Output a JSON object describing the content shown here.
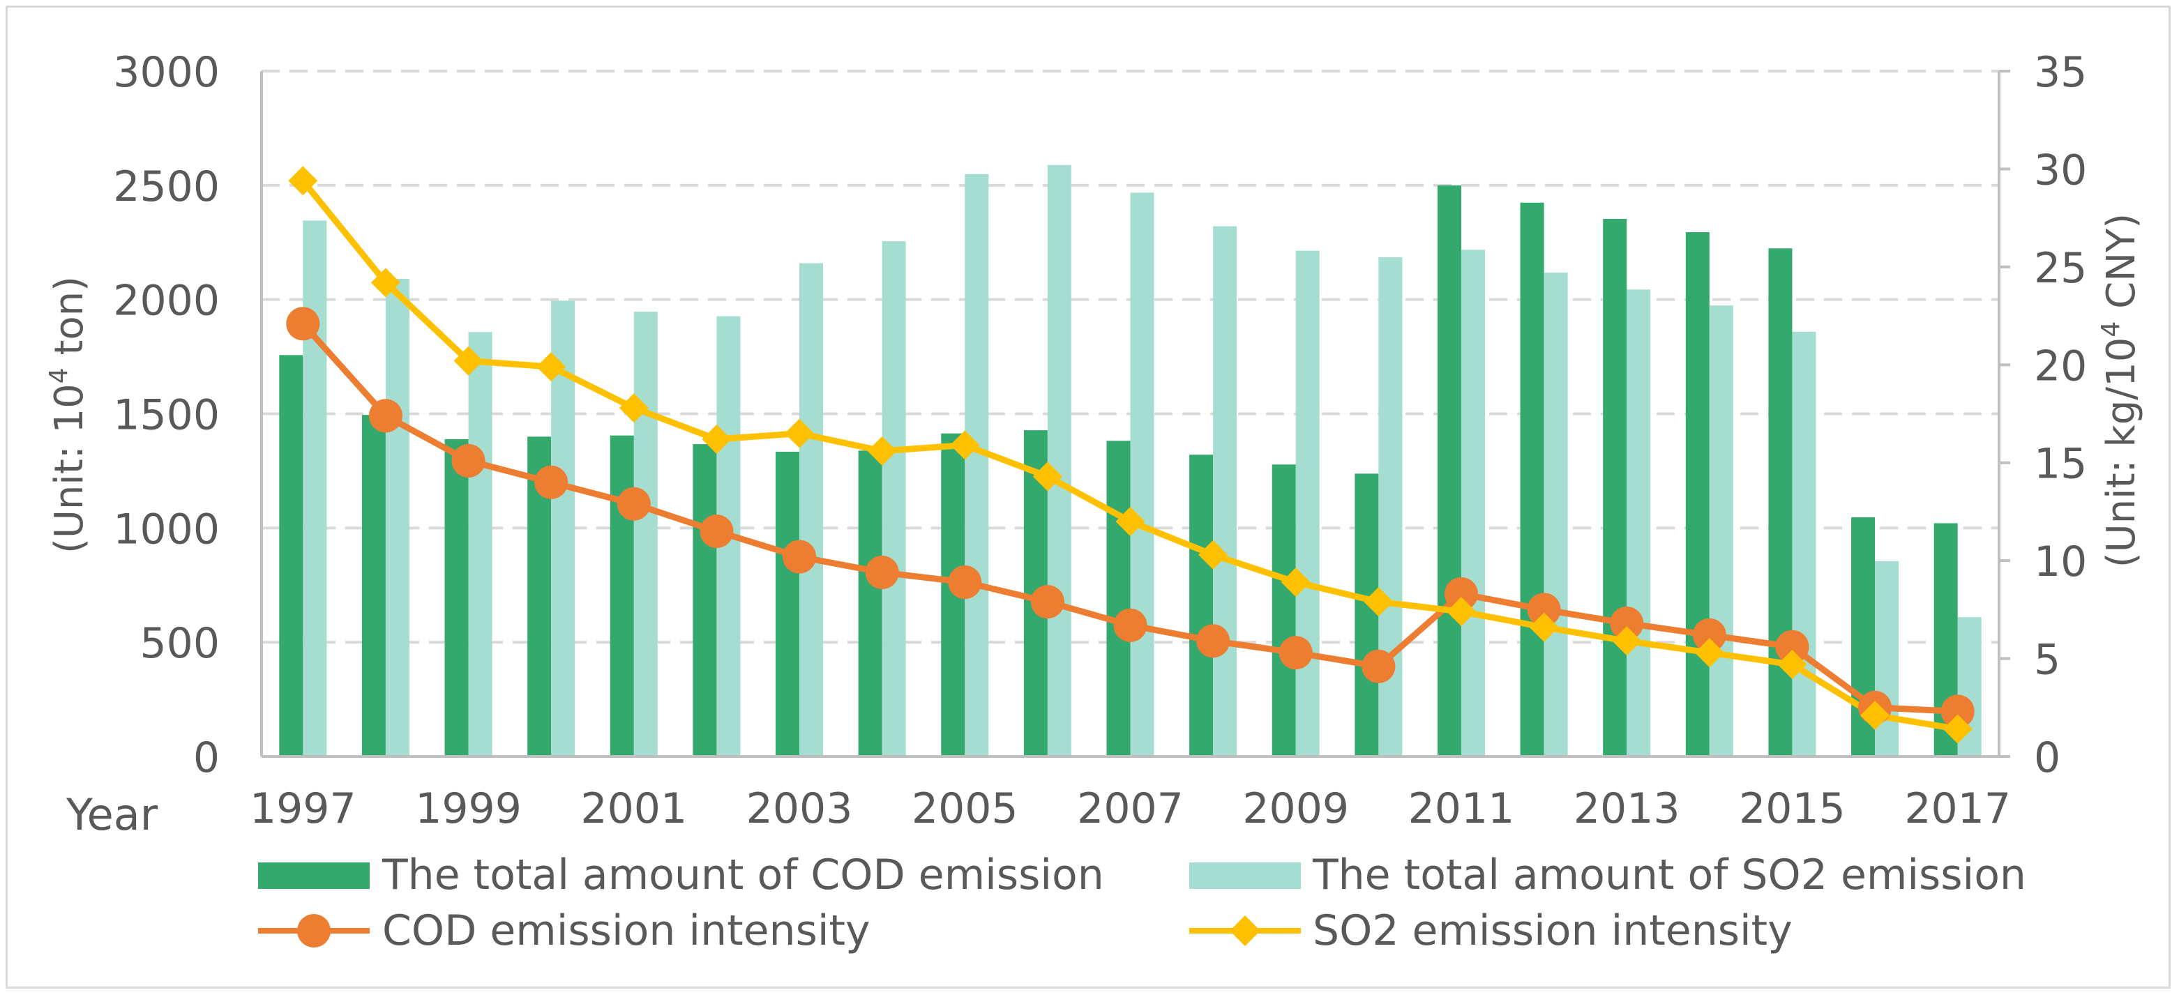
{
  "chart_data": {
    "type": "bar+line",
    "title": "",
    "xlabel": "Year",
    "ylabel_left": {
      "prefix": "(Unit: 10",
      "sup": "4",
      "suffix": " ton)"
    },
    "ylabel_right": {
      "prefix": "(Unit: kg/10",
      "sup": "4",
      "suffix": " CNY)"
    },
    "ylim_left": [
      0,
      3000
    ],
    "ylim_right": [
      0,
      35
    ],
    "yticks_left": [
      0,
      500,
      1000,
      1500,
      2000,
      2500,
      3000
    ],
    "yticks_right": [
      0,
      5,
      10,
      15,
      20,
      25,
      30,
      35
    ],
    "grid": true,
    "legend_position": "bottom",
    "categories": [
      1997,
      1998,
      1999,
      2000,
      2001,
      2002,
      2003,
      2004,
      2005,
      2006,
      2007,
      2008,
      2009,
      2010,
      2011,
      2012,
      2013,
      2014,
      2015,
      2016,
      2017
    ],
    "xtick_labels": [
      "1997",
      "1999",
      "2001",
      "2003",
      "2005",
      "2007",
      "2009",
      "2011",
      "2013",
      "2015",
      "2017"
    ],
    "bar_series": [
      {
        "name": "The total amount of COD emission",
        "axis": "left",
        "color": "#33a96d",
        "values": [
          1757,
          1495,
          1389,
          1400,
          1405,
          1367,
          1334,
          1339,
          1414,
          1428,
          1382,
          1321,
          1278,
          1238,
          2500,
          2424,
          2353,
          2295,
          2224,
          1047,
          1021
        ]
      },
      {
        "name": "The total amount of SO2 emission",
        "axis": "left",
        "color": "#a5ddd0",
        "values": [
          2346,
          2091,
          1858,
          1995,
          1947,
          1927,
          2159,
          2255,
          2549,
          2589,
          2468,
          2321,
          2214,
          2185,
          2218,
          2118,
          2044,
          1974,
          1859,
          855,
          610
        ]
      }
    ],
    "line_series": [
      {
        "name": "COD emission intensity",
        "axis": "right",
        "color": "#ed7d31",
        "marker": "circle",
        "values": [
          22.1,
          17.4,
          15.1,
          14.0,
          12.9,
          11.5,
          10.2,
          9.4,
          8.9,
          7.9,
          6.7,
          5.9,
          5.3,
          4.6,
          8.3,
          7.5,
          6.8,
          6.2,
          5.6,
          2.5,
          2.3
        ]
      },
      {
        "name": "SO2 emission intensity",
        "axis": "right",
        "color": "#ffc000",
        "marker": "diamond",
        "values": [
          29.4,
          24.2,
          20.2,
          19.9,
          17.8,
          16.2,
          16.5,
          15.6,
          15.9,
          14.3,
          12.0,
          10.3,
          8.9,
          7.9,
          7.4,
          6.6,
          5.9,
          5.3,
          4.7,
          2.1,
          1.4
        ]
      }
    ]
  }
}
